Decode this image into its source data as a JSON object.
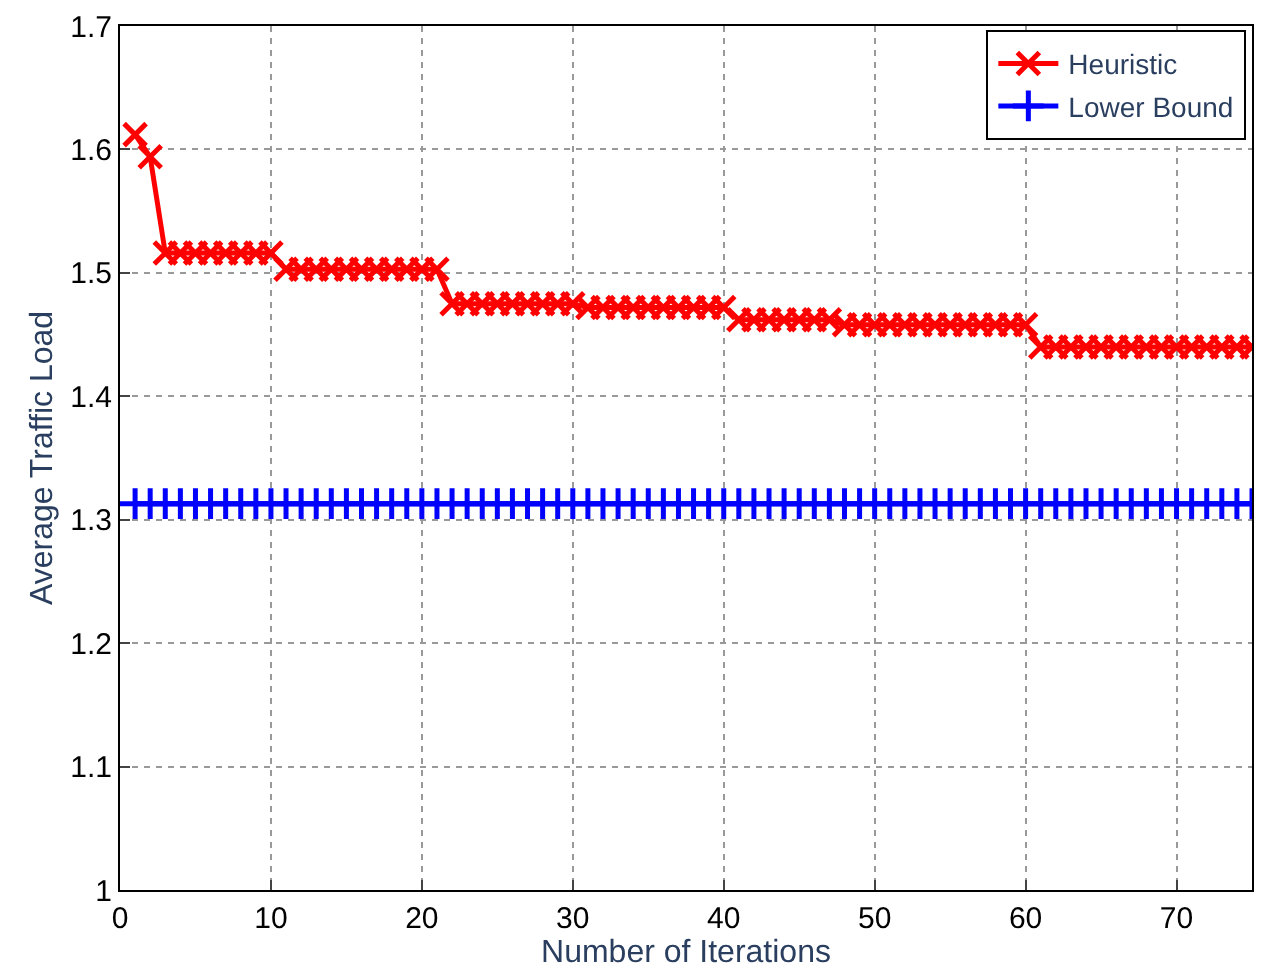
{
  "chart_data": {
    "type": "line",
    "xlabel": "Number of Iterations",
    "ylabel": "Average Traffic Load",
    "xlim": [
      0,
      75
    ],
    "ylim": [
      1,
      1.7
    ],
    "xticks": [
      0,
      10,
      20,
      30,
      40,
      50,
      60,
      70
    ],
    "yticks": [
      1,
      1.1,
      1.2,
      1.3,
      1.4,
      1.5,
      1.6,
      1.7
    ],
    "grid": true,
    "legend": "top right",
    "line_style": "solid",
    "x": [
      1,
      2,
      3,
      4,
      5,
      6,
      7,
      8,
      9,
      10,
      11,
      12,
      13,
      14,
      15,
      16,
      17,
      18,
      19,
      20,
      21,
      22,
      23,
      24,
      25,
      26,
      27,
      28,
      29,
      30,
      31,
      32,
      33,
      34,
      35,
      36,
      37,
      38,
      39,
      40,
      41,
      42,
      43,
      44,
      45,
      46,
      47,
      48,
      49,
      50,
      51,
      52,
      53,
      54,
      55,
      56,
      57,
      58,
      59,
      60,
      61,
      62,
      63,
      64,
      65,
      66,
      67,
      68,
      69,
      70,
      71,
      72,
      73,
      74,
      75
    ],
    "series": [
      {
        "name": "Heuristic",
        "color": "#ff0000",
        "marker": "cross",
        "values": [
          1.612,
          1.594,
          1.516,
          1.516,
          1.516,
          1.516,
          1.516,
          1.516,
          1.516,
          1.516,
          1.503,
          1.503,
          1.503,
          1.503,
          1.503,
          1.503,
          1.503,
          1.503,
          1.503,
          1.503,
          1.503,
          1.475,
          1.475,
          1.475,
          1.475,
          1.475,
          1.475,
          1.475,
          1.475,
          1.475,
          1.472,
          1.472,
          1.472,
          1.472,
          1.472,
          1.472,
          1.472,
          1.472,
          1.472,
          1.472,
          1.462,
          1.462,
          1.462,
          1.462,
          1.462,
          1.462,
          1.462,
          1.458,
          1.458,
          1.458,
          1.458,
          1.458,
          1.458,
          1.458,
          1.458,
          1.458,
          1.458,
          1.458,
          1.458,
          1.458,
          1.44,
          1.44,
          1.44,
          1.44,
          1.44,
          1.44,
          1.44,
          1.44,
          1.44,
          1.44,
          1.44,
          1.44,
          1.44,
          1.44,
          1.44
        ]
      },
      {
        "name": "Lower Bound",
        "color": "#0000ff",
        "marker": "plus",
        "values": [
          1.313,
          1.313,
          1.313,
          1.313,
          1.313,
          1.313,
          1.313,
          1.313,
          1.313,
          1.313,
          1.313,
          1.313,
          1.313,
          1.313,
          1.313,
          1.313,
          1.313,
          1.313,
          1.313,
          1.313,
          1.313,
          1.313,
          1.313,
          1.313,
          1.313,
          1.313,
          1.313,
          1.313,
          1.313,
          1.313,
          1.313,
          1.313,
          1.313,
          1.313,
          1.313,
          1.313,
          1.313,
          1.313,
          1.313,
          1.313,
          1.313,
          1.313,
          1.313,
          1.313,
          1.313,
          1.313,
          1.313,
          1.313,
          1.313,
          1.313,
          1.313,
          1.313,
          1.313,
          1.313,
          1.313,
          1.313,
          1.313,
          1.313,
          1.313,
          1.313,
          1.313,
          1.313,
          1.313,
          1.313,
          1.313,
          1.313,
          1.313,
          1.313,
          1.313,
          1.313,
          1.313,
          1.313,
          1.313,
          1.313,
          1.313
        ]
      }
    ]
  }
}
